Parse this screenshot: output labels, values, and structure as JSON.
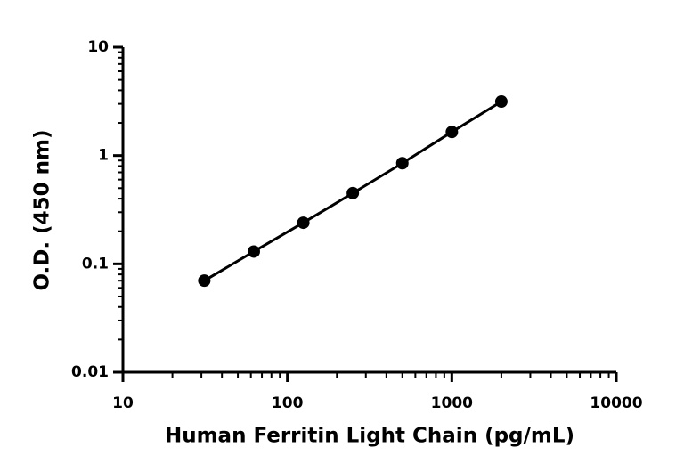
{
  "chart_data": {
    "type": "scatter",
    "xlabel": "Human Ferritin Light Chain (pg/mL)",
    "ylabel": "O.D. (450 nm)",
    "x": [
      31.25,
      62.5,
      125,
      250,
      500,
      1000,
      2000
    ],
    "series": [
      {
        "color": "#000000",
        "values": [
          0.07,
          0.13,
          0.24,
          0.45,
          0.85,
          1.65,
          3.15
        ]
      }
    ],
    "line": true,
    "xscale": "log",
    "yscale": "log",
    "xlim": [
      10,
      10000
    ],
    "ylim": [
      0.01,
      10
    ],
    "xticks": [
      10,
      100,
      1000,
      10000
    ],
    "yticks": [
      0.01,
      0.1,
      1,
      10
    ]
  }
}
